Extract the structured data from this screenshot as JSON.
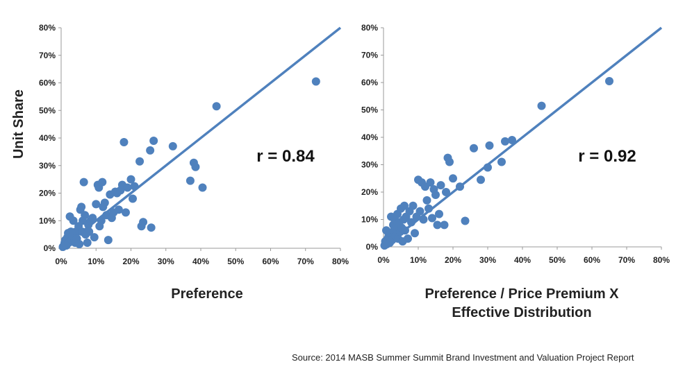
{
  "chart_data": [
    {
      "type": "scatter",
      "xlabel": "Preference",
      "ylabel": "Unit Share",
      "annotation": "r = 0.84",
      "xlim": [
        0,
        0.8
      ],
      "ylim": [
        0,
        0.8
      ],
      "x_ticks": [
        "0%",
        "10%",
        "20%",
        "30%",
        "40%",
        "50%",
        "60%",
        "70%",
        "80%"
      ],
      "y_ticks": [
        "0%",
        "10%",
        "20%",
        "30%",
        "40%",
        "50%",
        "60%",
        "70%",
        "80%"
      ],
      "trendline": [
        [
          0,
          0
        ],
        [
          0.8,
          0.8
        ]
      ],
      "color": "#4f81bd",
      "points": [
        [
          0.005,
          0.005
        ],
        [
          0.008,
          0.01
        ],
        [
          0.01,
          0.02
        ],
        [
          0.012,
          0.03
        ],
        [
          0.015,
          0.01
        ],
        [
          0.018,
          0.04
        ],
        [
          0.02,
          0.055
        ],
        [
          0.022,
          0.02
        ],
        [
          0.025,
          0.115
        ],
        [
          0.028,
          0.06
        ],
        [
          0.03,
          0.03
        ],
        [
          0.032,
          0.045
        ],
        [
          0.035,
          0.1
        ],
        [
          0.04,
          0.02
        ],
        [
          0.042,
          0.06
        ],
        [
          0.045,
          0.035
        ],
        [
          0.05,
          0.08
        ],
        [
          0.052,
          0.015
        ],
        [
          0.055,
          0.14
        ],
        [
          0.058,
          0.15
        ],
        [
          0.06,
          0.06
        ],
        [
          0.062,
          0.1
        ],
        [
          0.065,
          0.24
        ],
        [
          0.068,
          0.12
        ],
        [
          0.07,
          0.05
        ],
        [
          0.075,
          0.02
        ],
        [
          0.078,
          0.085
        ],
        [
          0.08,
          0.06
        ],
        [
          0.085,
          0.1
        ],
        [
          0.09,
          0.11
        ],
        [
          0.095,
          0.04
        ],
        [
          0.1,
          0.16
        ],
        [
          0.105,
          0.23
        ],
        [
          0.108,
          0.22
        ],
        [
          0.11,
          0.08
        ],
        [
          0.115,
          0.1
        ],
        [
          0.118,
          0.24
        ],
        [
          0.12,
          0.15
        ],
        [
          0.125,
          0.165
        ],
        [
          0.13,
          0.12
        ],
        [
          0.135,
          0.03
        ],
        [
          0.14,
          0.195
        ],
        [
          0.145,
          0.11
        ],
        [
          0.15,
          0.13
        ],
        [
          0.155,
          0.205
        ],
        [
          0.16,
          0.2
        ],
        [
          0.165,
          0.14
        ],
        [
          0.17,
          0.21
        ],
        [
          0.175,
          0.23
        ],
        [
          0.18,
          0.385
        ],
        [
          0.185,
          0.13
        ],
        [
          0.19,
          0.22
        ],
        [
          0.2,
          0.25
        ],
        [
          0.205,
          0.18
        ],
        [
          0.21,
          0.225
        ],
        [
          0.225,
          0.315
        ],
        [
          0.23,
          0.08
        ],
        [
          0.235,
          0.095
        ],
        [
          0.255,
          0.355
        ],
        [
          0.258,
          0.075
        ],
        [
          0.265,
          0.39
        ],
        [
          0.32,
          0.37
        ],
        [
          0.37,
          0.245
        ],
        [
          0.38,
          0.31
        ],
        [
          0.385,
          0.295
        ],
        [
          0.405,
          0.22
        ],
        [
          0.445,
          0.515
        ],
        [
          0.73,
          0.605
        ]
      ]
    },
    {
      "type": "scatter",
      "xlabel_line1": "Preference / Price Premium X",
      "xlabel_line2": "Effective Distribution",
      "annotation": "r = 0.92",
      "xlim": [
        0,
        0.8
      ],
      "ylim": [
        0,
        0.8
      ],
      "x_ticks": [
        "0%",
        "10%",
        "20%",
        "30%",
        "40%",
        "50%",
        "60%",
        "70%",
        "80%"
      ],
      "y_ticks": [
        "0%",
        "10%",
        "20%",
        "30%",
        "40%",
        "50%",
        "60%",
        "70%",
        "80%"
      ],
      "trendline": [
        [
          0,
          0
        ],
        [
          0.8,
          0.8
        ]
      ],
      "color": "#4f81bd",
      "points": [
        [
          0.003,
          0.005
        ],
        [
          0.005,
          0.02
        ],
        [
          0.008,
          0.06
        ],
        [
          0.01,
          0.01
        ],
        [
          0.012,
          0.03
        ],
        [
          0.015,
          0.04
        ],
        [
          0.018,
          0.015
        ],
        [
          0.02,
          0.05
        ],
        [
          0.022,
          0.11
        ],
        [
          0.025,
          0.025
        ],
        [
          0.028,
          0.08
        ],
        [
          0.03,
          0.06
        ],
        [
          0.032,
          0.1
        ],
        [
          0.035,
          0.04
        ],
        [
          0.038,
          0.075
        ],
        [
          0.04,
          0.12
        ],
        [
          0.042,
          0.03
        ],
        [
          0.045,
          0.09
        ],
        [
          0.048,
          0.055
        ],
        [
          0.05,
          0.14
        ],
        [
          0.052,
          0.07
        ],
        [
          0.055,
          0.02
        ],
        [
          0.058,
          0.1
        ],
        [
          0.06,
          0.15
        ],
        [
          0.062,
          0.06
        ],
        [
          0.065,
          0.11
        ],
        [
          0.07,
          0.03
        ],
        [
          0.075,
          0.13
        ],
        [
          0.08,
          0.09
        ],
        [
          0.085,
          0.15
        ],
        [
          0.09,
          0.05
        ],
        [
          0.095,
          0.11
        ],
        [
          0.1,
          0.245
        ],
        [
          0.105,
          0.13
        ],
        [
          0.11,
          0.235
        ],
        [
          0.115,
          0.1
        ],
        [
          0.12,
          0.22
        ],
        [
          0.125,
          0.17
        ],
        [
          0.13,
          0.14
        ],
        [
          0.135,
          0.235
        ],
        [
          0.14,
          0.105
        ],
        [
          0.145,
          0.21
        ],
        [
          0.15,
          0.19
        ],
        [
          0.155,
          0.08
        ],
        [
          0.16,
          0.12
        ],
        [
          0.165,
          0.225
        ],
        [
          0.175,
          0.08
        ],
        [
          0.18,
          0.2
        ],
        [
          0.185,
          0.325
        ],
        [
          0.19,
          0.31
        ],
        [
          0.2,
          0.25
        ],
        [
          0.22,
          0.22
        ],
        [
          0.235,
          0.095
        ],
        [
          0.26,
          0.36
        ],
        [
          0.28,
          0.245
        ],
        [
          0.3,
          0.29
        ],
        [
          0.305,
          0.37
        ],
        [
          0.34,
          0.31
        ],
        [
          0.35,
          0.385
        ],
        [
          0.37,
          0.39
        ],
        [
          0.455,
          0.515
        ],
        [
          0.65,
          0.605
        ]
      ]
    }
  ],
  "source": "Source: 2014 MASB Summer Summit Brand Investment and Valuation Project Report"
}
